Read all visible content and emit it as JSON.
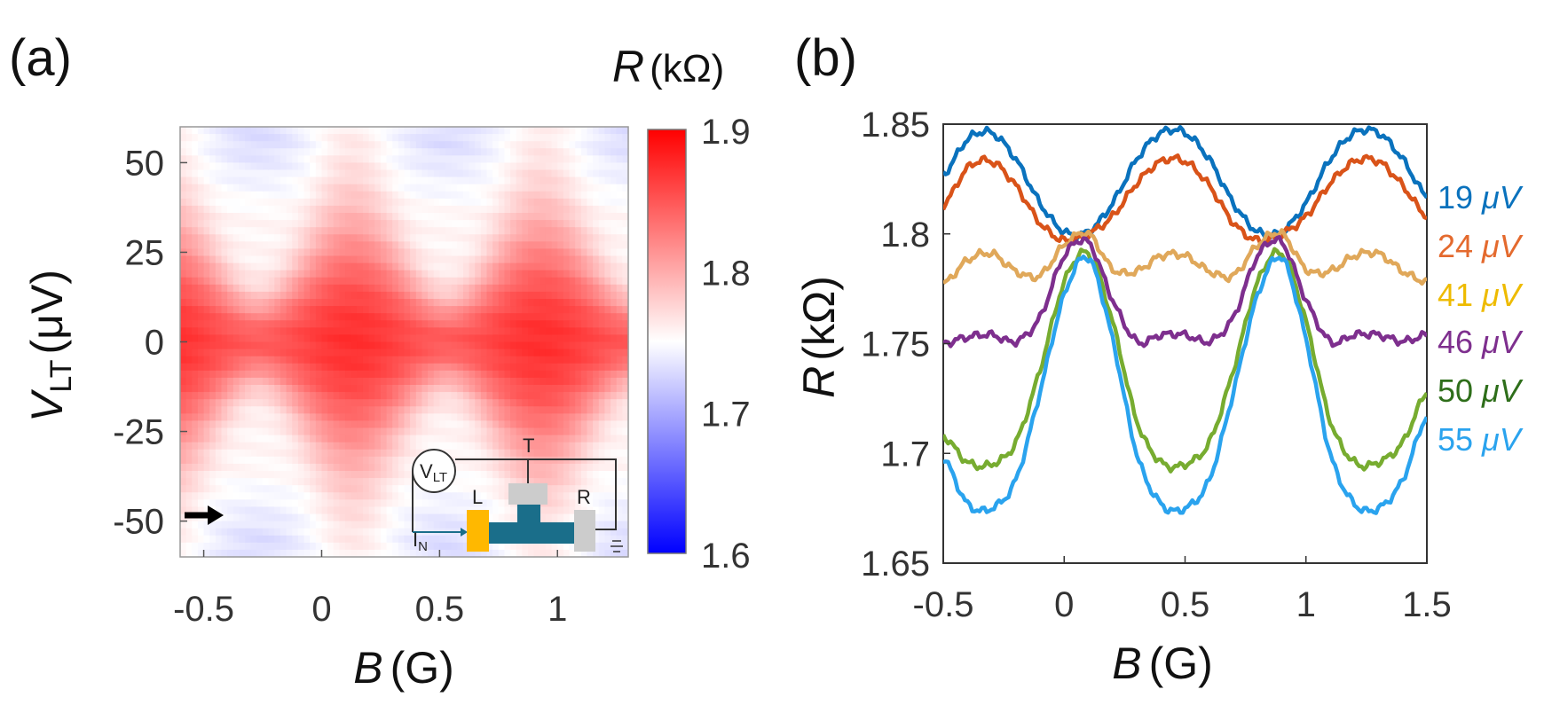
{
  "panel_a": {
    "label": "(a)",
    "colorbar_title_sym": "R",
    "colorbar_title_unit": "(kΩ)",
    "colorbar_ticks": [
      "1.9",
      "1.8",
      "1.7",
      "1.6"
    ],
    "inset": {
      "meter": "V",
      "meter_sub": "LT",
      "top": "T",
      "left": "L",
      "right": "R",
      "current": "I",
      "current_sub": "N"
    },
    "colors": {
      "high": "#ff0000",
      "mid": "#ffffff",
      "low": "#0000ff"
    }
  },
  "panel_b": {
    "label": "(b)"
  },
  "chart_data": [
    {
      "type": "heatmap",
      "title": "",
      "xlabel_sym": "B",
      "xlabel_unit": "(G)",
      "ylabel_sym": "V",
      "ylabel_sub": "LT",
      "ylabel_unit": "(μV)",
      "xlim": [
        -0.6,
        1.3
      ],
      "ylim": [
        -60,
        60
      ],
      "xticks": [
        -0.5,
        0,
        0.5,
        1
      ],
      "xtick_labels": [
        "-0.5",
        "0",
        "0.5",
        "1"
      ],
      "yticks": [
        50,
        25,
        0,
        -25,
        -50
      ],
      "ytick_labels": [
        "50",
        "25",
        "0",
        "-25",
        "-50"
      ],
      "colorbar_range": [
        1.6,
        1.9
      ],
      "arrow_marker_V": -50,
      "oscillation_period_G": 0.8,
      "max_R_at_B": [
        0.13,
        0.93
      ],
      "min_R_at_B": [
        -0.27,
        0.53
      ],
      "R_center": 1.87,
      "R_background": 1.76
    },
    {
      "type": "line",
      "xlabel_sym": "B",
      "xlabel_unit": "(G)",
      "ylabel_sym": "R",
      "ylabel_unit": "(kΩ)",
      "xlim": [
        -0.5,
        1.5
      ],
      "ylim": [
        1.65,
        1.85
      ],
      "xticks": [
        -0.5,
        0,
        0.5,
        1,
        1.5
      ],
      "xtick_labels": [
        "-0.5",
        "0",
        "0.5",
        "1",
        "1.5"
      ],
      "yticks": [
        1.65,
        1.7,
        1.75,
        1.8,
        1.85
      ],
      "ytick_labels": [
        "1.65",
        "1.7",
        "1.75",
        "1.8",
        "1.85"
      ],
      "x": [
        -0.5,
        -0.4,
        -0.3,
        -0.2,
        -0.1,
        0.0,
        0.1,
        0.2,
        0.3,
        0.4,
        0.5,
        0.6,
        0.7,
        0.8,
        0.9,
        1.0,
        1.1,
        1.2,
        1.3,
        1.4,
        1.5
      ],
      "series": [
        {
          "name": "19 μV",
          "label_num": "19",
          "label_unit": "μV",
          "color": "#0a72bd",
          "label_color": "#0a72bd",
          "values": [
            1.827,
            1.843,
            1.846,
            1.834,
            1.814,
            1.801,
            1.801,
            1.814,
            1.834,
            1.846,
            1.846,
            1.834,
            1.814,
            1.801,
            1.801,
            1.814,
            1.834,
            1.846,
            1.846,
            1.834,
            1.817
          ]
        },
        {
          "name": "24 μV",
          "label_num": "24",
          "label_unit": "μV",
          "color": "#d95319",
          "label_color": "#e46a2e",
          "values": [
            1.813,
            1.83,
            1.833,
            1.822,
            1.805,
            1.797,
            1.8,
            1.808,
            1.823,
            1.833,
            1.833,
            1.822,
            1.805,
            1.797,
            1.8,
            1.808,
            1.823,
            1.833,
            1.833,
            1.822,
            1.808
          ]
        },
        {
          "name": "41 μV",
          "label_num": "41",
          "label_unit": "μV",
          "color": "#e0a85a",
          "label_color": "#eebb00",
          "values": [
            1.777,
            1.788,
            1.791,
            1.783,
            1.781,
            1.795,
            1.8,
            1.784,
            1.783,
            1.79,
            1.79,
            1.783,
            1.781,
            1.795,
            1.8,
            1.784,
            1.783,
            1.79,
            1.791,
            1.783,
            1.778
          ]
        },
        {
          "name": "46 μV",
          "label_num": "46",
          "label_unit": "μV",
          "color": "#7e2f8e",
          "label_color": "#7e2f8e",
          "values": [
            1.75,
            1.753,
            1.754,
            1.751,
            1.762,
            1.79,
            1.796,
            1.77,
            1.751,
            1.754,
            1.754,
            1.751,
            1.762,
            1.79,
            1.796,
            1.77,
            1.751,
            1.754,
            1.754,
            1.751,
            1.754
          ]
        },
        {
          "name": "50 μV",
          "label_num": "50",
          "label_unit": "μV",
          "color": "#77ac30",
          "label_color": "#2e6e1a",
          "values": [
            1.708,
            1.696,
            1.695,
            1.705,
            1.738,
            1.778,
            1.791,
            1.76,
            1.715,
            1.696,
            1.695,
            1.705,
            1.738,
            1.778,
            1.791,
            1.76,
            1.715,
            1.696,
            1.696,
            1.705,
            1.728
          ]
        },
        {
          "name": "55 μV",
          "label_num": "55",
          "label_unit": "μV",
          "color": "#2aa3ee",
          "label_color": "#2aa3ee",
          "values": [
            1.698,
            1.677,
            1.675,
            1.688,
            1.728,
            1.772,
            1.789,
            1.752,
            1.7,
            1.677,
            1.675,
            1.688,
            1.728,
            1.772,
            1.789,
            1.752,
            1.7,
            1.677,
            1.675,
            1.688,
            1.717
          ]
        }
      ]
    }
  ]
}
